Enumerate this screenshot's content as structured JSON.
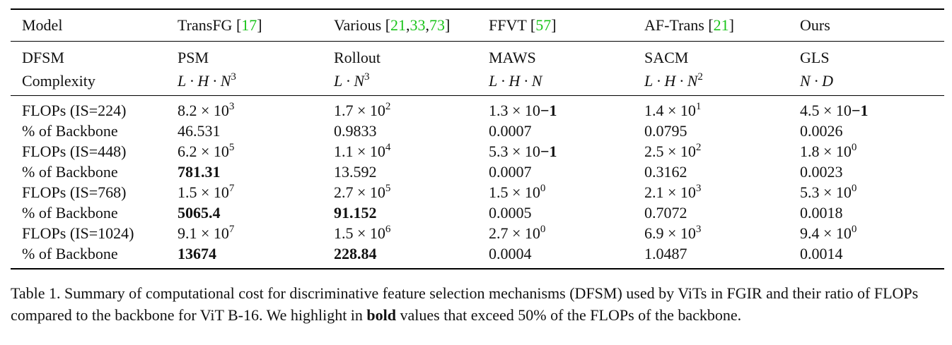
{
  "header": {
    "columns": [
      {
        "name": "Model",
        "refs": []
      },
      {
        "name": "TransFG",
        "refs": [
          "17"
        ]
      },
      {
        "name": "Various",
        "refs": [
          "21",
          "33",
          "73"
        ]
      },
      {
        "name": "FFVT",
        "refs": [
          "57"
        ]
      },
      {
        "name": "AF-Trans",
        "refs": [
          "21"
        ]
      },
      {
        "name": "Ours",
        "refs": []
      }
    ]
  },
  "dfsm": {
    "label": "DFSM",
    "values": [
      "PSM",
      "Rollout",
      "MAWS",
      "SACM",
      "GLS"
    ]
  },
  "complexity": {
    "label": "Complexity",
    "values": [
      {
        "base": "L · H · N",
        "exp": "3"
      },
      {
        "base": "L · N",
        "exp": "3"
      },
      {
        "base": "L · H · N",
        "exp": ""
      },
      {
        "base": "L · H · N",
        "exp": "2"
      },
      {
        "base": "N · D",
        "exp": ""
      }
    ]
  },
  "rows": [
    {
      "label": "FLOPs (IS=224)",
      "cells": [
        {
          "mantissa": "8.2",
          "exp": "3"
        },
        {
          "mantissa": "1.7",
          "exp": "2"
        },
        {
          "mantissa": "1.3",
          "exp": "−1",
          "inline": true
        },
        {
          "mantissa": "1.4",
          "exp": "1"
        },
        {
          "mantissa": "4.5",
          "exp": "−1",
          "inline": true
        }
      ]
    },
    {
      "label": "% of Backbone",
      "cells": [
        {
          "text": "46.531",
          "bold": false
        },
        {
          "text": "0.9833",
          "bold": false
        },
        {
          "text": "0.0007",
          "bold": false
        },
        {
          "text": "0.0795",
          "bold": false
        },
        {
          "text": "0.0026",
          "bold": false
        }
      ]
    },
    {
      "label": "FLOPs (IS=448)",
      "cells": [
        {
          "mantissa": "6.2",
          "exp": "5"
        },
        {
          "mantissa": "1.1",
          "exp": "4"
        },
        {
          "mantissa": "5.3",
          "exp": "−1",
          "inline": true
        },
        {
          "mantissa": "2.5",
          "exp": "2"
        },
        {
          "mantissa": "1.8",
          "exp": "0"
        }
      ]
    },
    {
      "label": "% of Backbone",
      "cells": [
        {
          "text": "781.31",
          "bold": true
        },
        {
          "text": "13.592",
          "bold": false
        },
        {
          "text": "0.0007",
          "bold": false
        },
        {
          "text": "0.3162",
          "bold": false
        },
        {
          "text": "0.0023",
          "bold": false
        }
      ]
    },
    {
      "label": "FLOPs (IS=768)",
      "cells": [
        {
          "mantissa": "1.5",
          "exp": "7"
        },
        {
          "mantissa": "2.7",
          "exp": "5"
        },
        {
          "mantissa": "1.5",
          "exp": "0"
        },
        {
          "mantissa": "2.1",
          "exp": "3"
        },
        {
          "mantissa": "5.3",
          "exp": "0"
        }
      ]
    },
    {
      "label": "% of Backbone",
      "cells": [
        {
          "text": "5065.4",
          "bold": true
        },
        {
          "text": "91.152",
          "bold": true
        },
        {
          "text": "0.0005",
          "bold": false
        },
        {
          "text": "0.7072",
          "bold": false
        },
        {
          "text": "0.0018",
          "bold": false
        }
      ]
    },
    {
      "label": "FLOPs (IS=1024)",
      "cells": [
        {
          "mantissa": "9.1",
          "exp": "7"
        },
        {
          "mantissa": "1.5",
          "exp": "6"
        },
        {
          "mantissa": "2.7",
          "exp": "0"
        },
        {
          "mantissa": "6.9",
          "exp": "3"
        },
        {
          "mantissa": "9.4",
          "exp": "0"
        }
      ]
    },
    {
      "label": "% of Backbone",
      "cells": [
        {
          "text": "13674",
          "bold": true
        },
        {
          "text": "228.84",
          "bold": true
        },
        {
          "text": "0.0004",
          "bold": false
        },
        {
          "text": "1.0487",
          "bold": false
        },
        {
          "text": "0.0014",
          "bold": false
        }
      ]
    }
  ],
  "caption": {
    "before": "Table 1. Summary of computational cost for discriminative feature selection mechanisms (DFSM) used by ViTs in FGIR and their ratio of FLOPs compared to the backbone for ViT B-16. We highlight in ",
    "bold": "bold",
    "after": " values that exceed 50% of the FLOPs of the backbone."
  },
  "colors": {
    "ref_link": "#19c419",
    "text": "#111111"
  }
}
